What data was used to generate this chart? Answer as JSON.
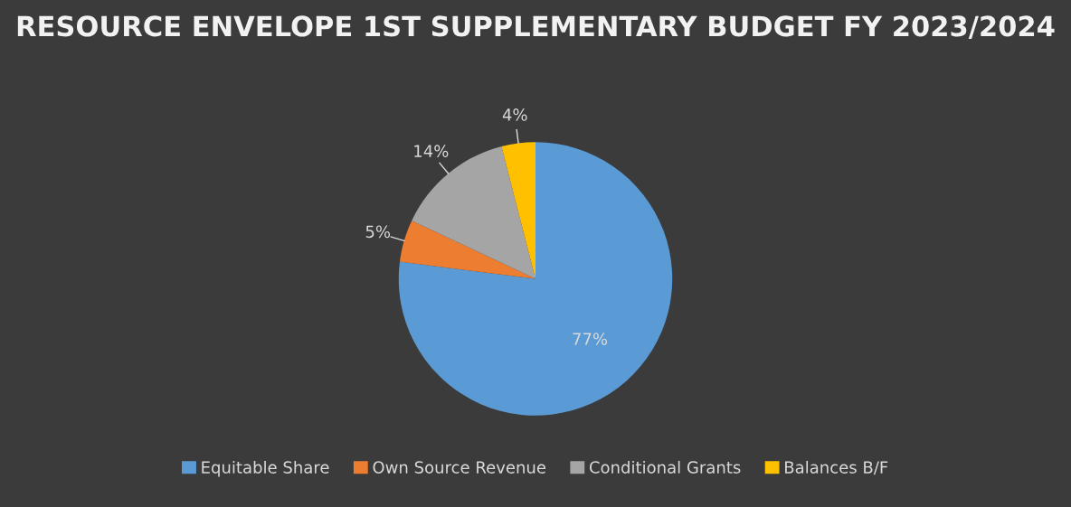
{
  "chart_data": {
    "type": "pie",
    "title": "RESOURCE ENVELOPE 1ST SUPPLEMENTARY BUDGET FY 2023/2024",
    "categories": [
      "Equitable Share",
      "Own Source Revenue",
      "Conditional Grants",
      "Balances B/F"
    ],
    "values": [
      77,
      5,
      14,
      4
    ],
    "colors": [
      "#5b9bd5",
      "#ed7d31",
      "#a5a5a5",
      "#ffc000"
    ],
    "value_labels": [
      "77%",
      "5%",
      "14%",
      "4%"
    ],
    "legend": "bottom"
  }
}
